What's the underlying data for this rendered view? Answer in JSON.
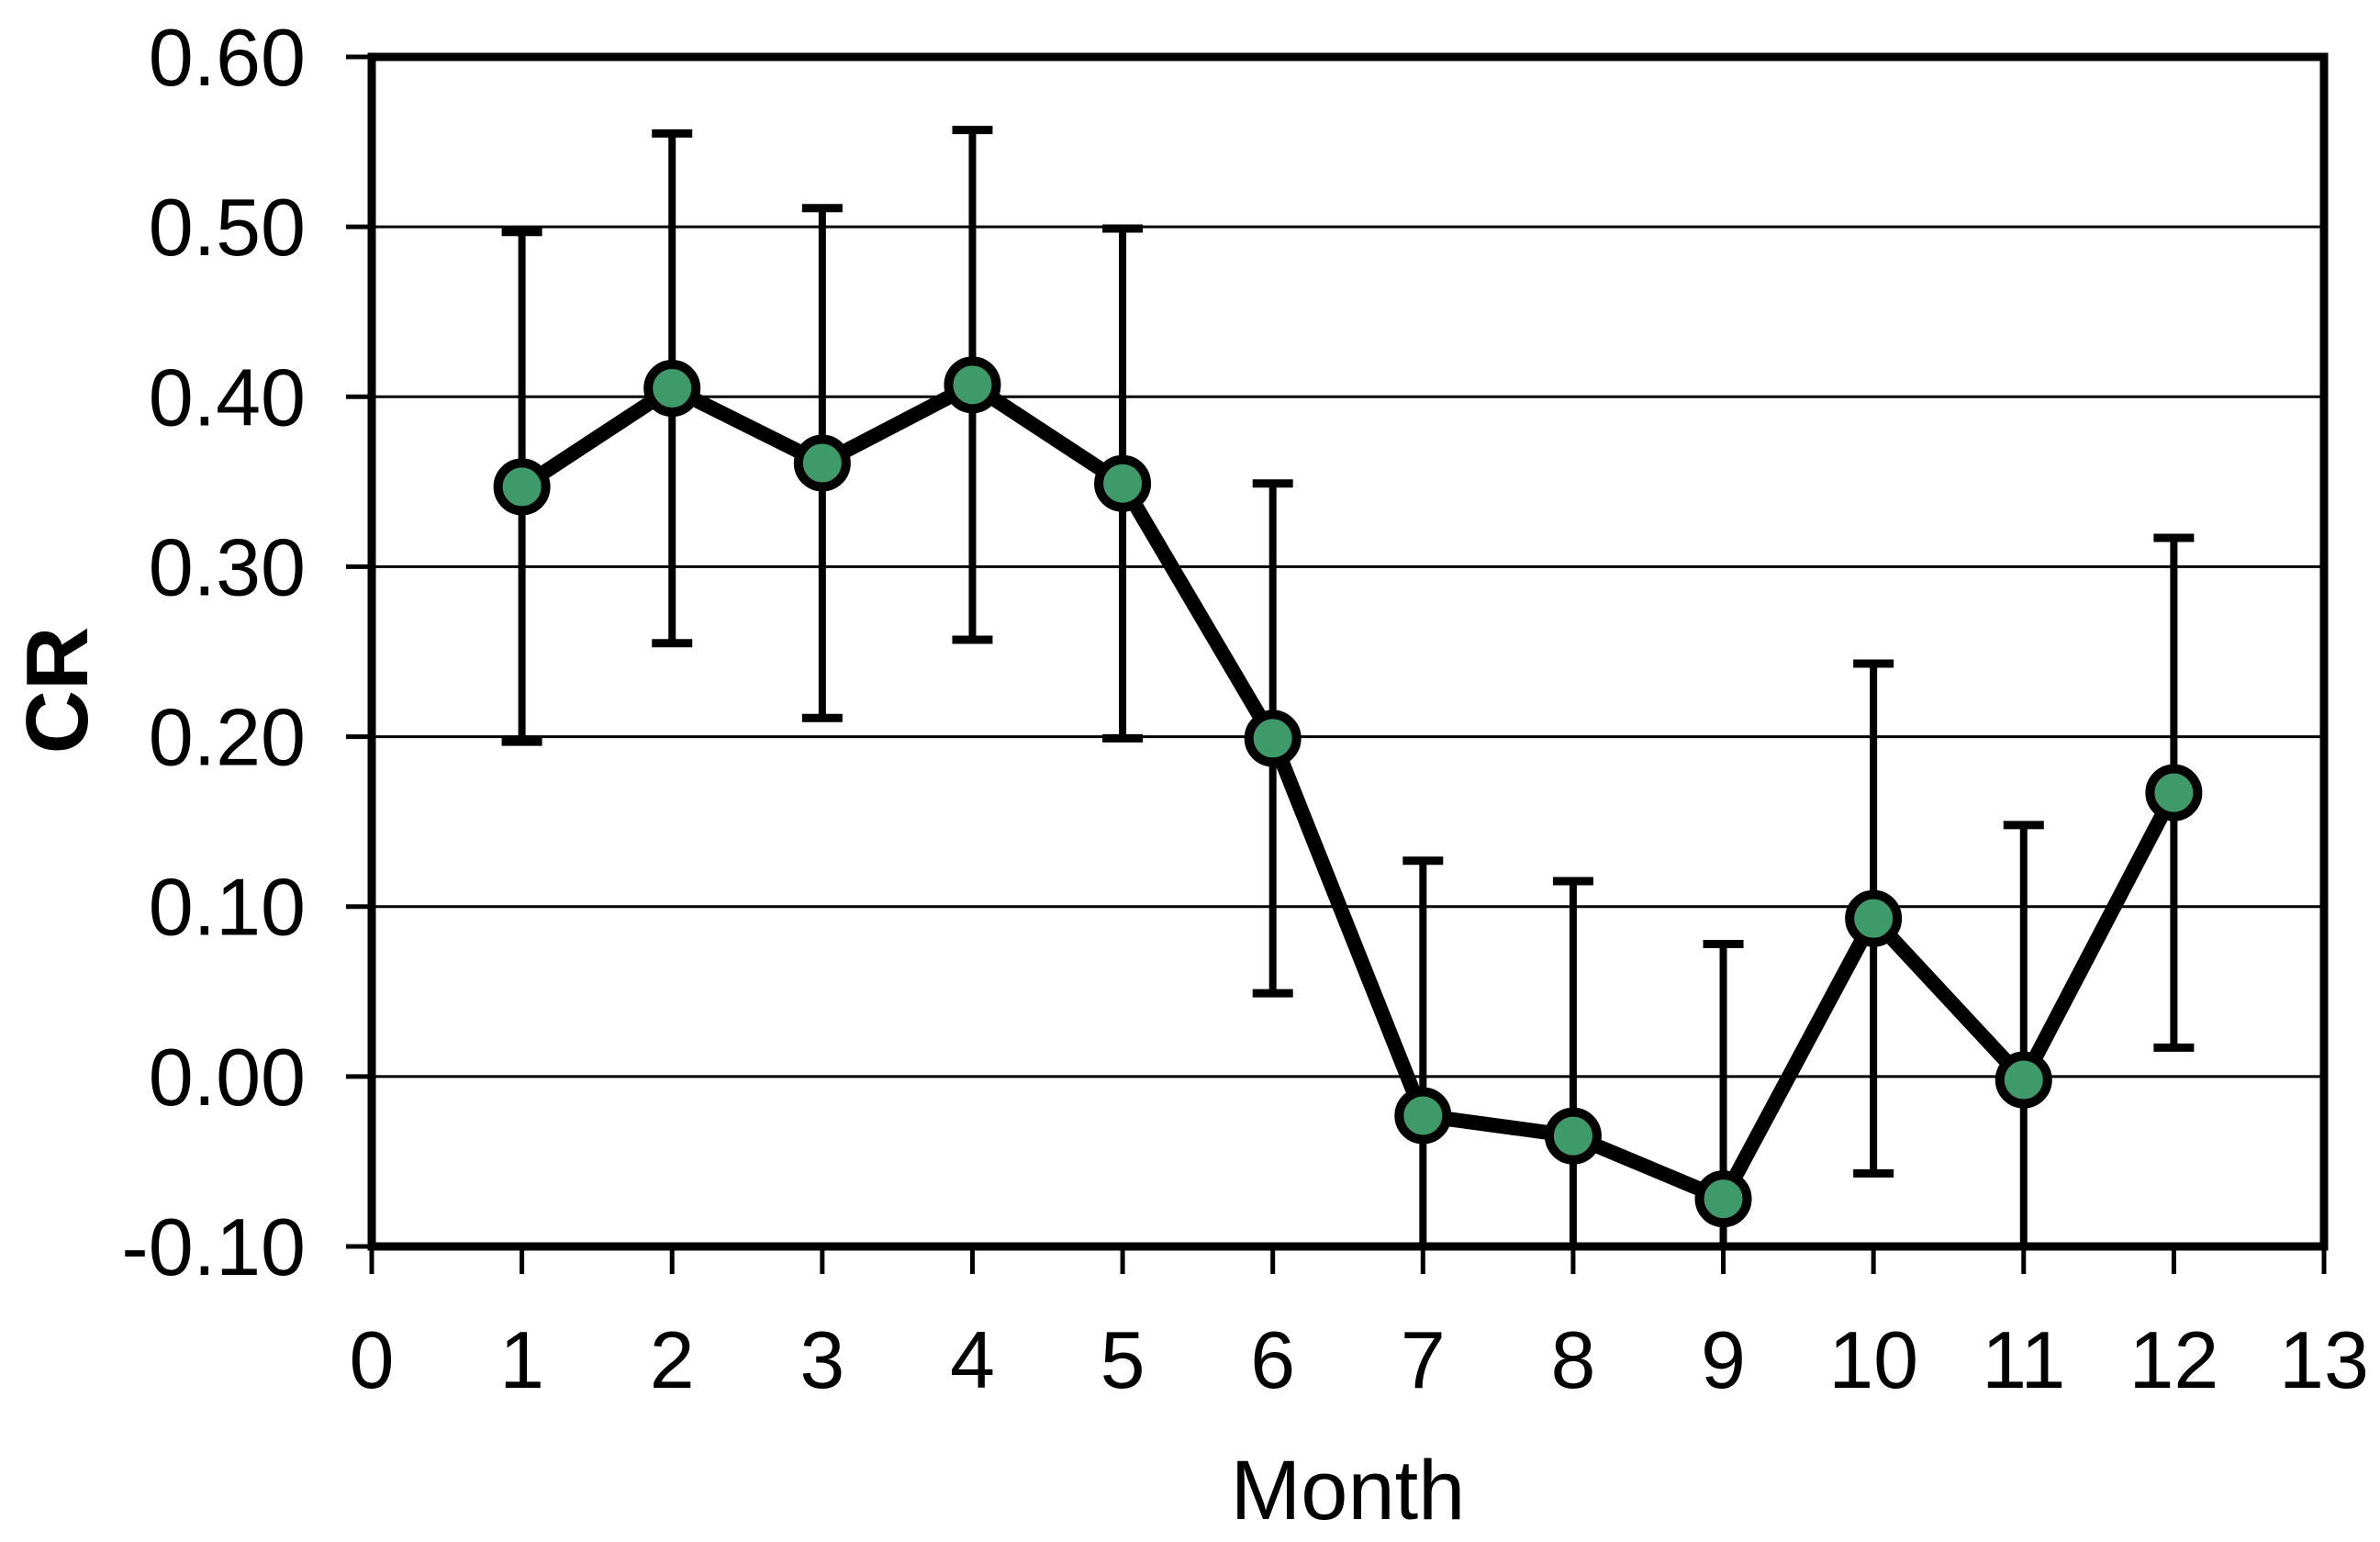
{
  "page": {
    "background_color": "#ffffff"
  },
  "chart_data": {
    "type": "line",
    "title": "",
    "xlabel": "Month",
    "ylabel": "CR",
    "x": [
      1,
      2,
      3,
      4,
      5,
      6,
      7,
      8,
      9,
      10,
      11,
      12
    ],
    "series": [
      {
        "name": "CR",
        "values": [
          0.347,
          0.405,
          0.361,
          0.407,
          0.349,
          0.199,
          -0.023,
          -0.035,
          -0.072,
          0.093,
          -0.002,
          0.167
        ],
        "error_plus": 0.15,
        "error_minus": 0.15
      }
    ],
    "xlim": [
      0,
      13
    ],
    "ylim": [
      -0.1,
      0.6
    ],
    "x_tick_step": 1,
    "y_tick_step": 0.1,
    "x_tick_labels": [
      "0",
      "1",
      "2",
      "3",
      "4",
      "5",
      "6",
      "7",
      "8",
      "9",
      "10",
      "11",
      "12",
      "13"
    ],
    "y_tick_labels": [
      "0.60",
      "0.50",
      "0.40",
      "0.30",
      "0.20",
      "0.10",
      "0.00",
      "-0.10"
    ],
    "grid": "horizontal",
    "legend_position": "none",
    "marker_shape": "circle",
    "marker_color": "#3E9A68",
    "marker_outline_color": "#000000",
    "line_color": "#000000",
    "error_bar_color": "#000000",
    "frame_color": "#000000",
    "background_color": "#ffffff",
    "error_bars_clipped_at_ymin_for_months": [
      7,
      8,
      9,
      11
    ]
  }
}
